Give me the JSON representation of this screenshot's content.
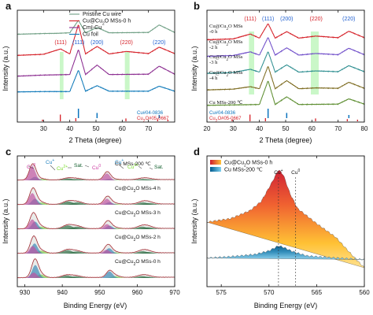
{
  "colors": {
    "pristine_cu_wire": "#6f9f84",
    "cu_cu2o_mss_0h": "#d51f27",
    "cmi_cu": "#8a2a8f",
    "cu_foil": "#0f79b9",
    "highlight_band": "#9ef09b",
    "cu_pdf": "#0b73bd",
    "cu2o_pdf": "#d51f27",
    "peak_cu": "#1f5fd0",
    "peak_cu2o": "#d51f27",
    "xps_envelope": "#e95a63",
    "xps_fill": "#9da29d",
    "xps_cu_plus": "#1b7fbe",
    "xps_cu0": "#cc39a1",
    "xps_cu2_plus": "#7bdc2e",
    "xps_sat": "#0d5c29",
    "panel_d_hot": "#ce1a2d",
    "panel_d_cool": "#77c9ea"
  },
  "chart_data": [
    {
      "panel": "a",
      "type": "line",
      "xlabel": "2 Theta (degree)",
      "ylabel": "Intensity (a.u.)",
      "xlim": [
        20,
        80
      ],
      "xticks": [
        30,
        40,
        50,
        60,
        70
      ],
      "legend_position": "top",
      "highlight_ranges": [
        [
          36.2,
          37.6
        ],
        [
          61.0,
          62.8
        ]
      ],
      "peak_labels": [
        {
          "text": "(111)",
          "x": 36.5,
          "phase": "Cu2O"
        },
        {
          "text": "(111)",
          "x": 43.3,
          "phase": "Cu"
        },
        {
          "text": "(200)",
          "x": 50.4,
          "phase": "Cu"
        },
        {
          "text": "(220)",
          "x": 61.6,
          "phase": "Cu2O"
        },
        {
          "text": "(220)",
          "x": 74.1,
          "phase": "Cu"
        }
      ],
      "series": [
        {
          "name": "Pristine Cu wire",
          "points": [
            [
              20,
              4.2
            ],
            [
              30,
              4.24
            ],
            [
              35,
              4.25
            ],
            [
              40,
              4.28
            ],
            [
              43.3,
              4.98
            ],
            [
              46,
              4.28
            ],
            [
              50.4,
              4.58
            ],
            [
              55,
              4.28
            ],
            [
              70,
              4.3
            ],
            [
              74.1,
              4.72
            ],
            [
              80,
              4.3
            ]
          ]
        },
        {
          "name": "Cu@Cu2O MSs-0 h",
          "points": [
            [
              20,
              3.02
            ],
            [
              30,
              3.08
            ],
            [
              36.5,
              3.38
            ],
            [
              40,
              3.1
            ],
            [
              43.3,
              4.75
            ],
            [
              46,
              3.1
            ],
            [
              50.4,
              3.52
            ],
            [
              55,
              3.1
            ],
            [
              61.6,
              3.24
            ],
            [
              70,
              3.12
            ],
            [
              74.1,
              3.48
            ],
            [
              80,
              3.12
            ]
          ]
        },
        {
          "name": "CmI-Cu",
          "points": [
            [
              20,
              1.86
            ],
            [
              30,
              1.92
            ],
            [
              40,
              1.95
            ],
            [
              43.3,
              3.35
            ],
            [
              46,
              1.95
            ],
            [
              50.4,
              2.48
            ],
            [
              55,
              1.95
            ],
            [
              70,
              1.97
            ],
            [
              74.1,
              2.42
            ],
            [
              80,
              1.97
            ]
          ]
        },
        {
          "name": "Cu foil",
          "points": [
            [
              20,
              0.98
            ],
            [
              30,
              1.0
            ],
            [
              40,
              1.0
            ],
            [
              43.3,
              2.2
            ],
            [
              46,
              1.02
            ],
            [
              50.4,
              1.33
            ],
            [
              55,
              1.02
            ],
            [
              70,
              1.02
            ],
            [
              74.1,
              1.3
            ],
            [
              80,
              1.02
            ]
          ]
        }
      ],
      "reference_patterns": [
        {
          "label": "Cu#04-0836",
          "peaks": [
            [
              43.3,
              1.0
            ],
            [
              50.4,
              0.46
            ],
            [
              74.1,
              0.2
            ]
          ]
        },
        {
          "label": "Cu2O#05-0667",
          "peaks": [
            [
              29.6,
              0.08
            ],
            [
              36.4,
              1.0
            ],
            [
              42.3,
              0.36
            ],
            [
              61.4,
              0.3
            ],
            [
              73.5,
              0.18
            ],
            [
              77.4,
              0.08
            ]
          ]
        }
      ]
    },
    {
      "panel": "b",
      "type": "line",
      "xlabel": "2 Theta (degree)",
      "ylabel": "Intensity (a.u.)",
      "xlim": [
        20,
        80
      ],
      "xticks": [
        20,
        30,
        40,
        50,
        60,
        70,
        80
      ],
      "highlight_ranges": [
        [
          36.0,
          38.0
        ],
        [
          59.6,
          62.6
        ]
      ],
      "peak_labels": [
        {
          "text": "(111)",
          "x": 36.5,
          "phase": "Cu2O"
        },
        {
          "text": "(111)",
          "x": 43.3,
          "phase": "Cu"
        },
        {
          "text": "(200)",
          "x": 50.4,
          "phase": "Cu"
        },
        {
          "text": "(220)",
          "x": 61.6,
          "phase": "Cu2O"
        },
        {
          "text": "(220)",
          "x": 74.1,
          "phase": "Cu"
        }
      ],
      "series": [
        {
          "name": "Cu@Cu2O MSs -0 h",
          "color": "#d51f27",
          "points": [
            [
              20,
              4.2
            ],
            [
              30,
              4.24
            ],
            [
              36.5,
              4.48
            ],
            [
              40,
              4.28
            ],
            [
              43.3,
              5.0
            ],
            [
              46,
              4.28
            ],
            [
              50.4,
              4.6
            ],
            [
              55,
              4.28
            ],
            [
              61.6,
              4.38
            ],
            [
              70,
              4.3
            ],
            [
              74.1,
              4.62
            ],
            [
              80,
              4.3
            ]
          ]
        },
        {
          "name": "Cu@Cu2O MSs -2 h",
          "color": "#6f4dc9",
          "points": [
            [
              20,
              3.38
            ],
            [
              30,
              3.42
            ],
            [
              36.5,
              3.6
            ],
            [
              40,
              3.44
            ],
            [
              43.3,
              4.32
            ],
            [
              46,
              3.44
            ],
            [
              50.4,
              3.8
            ],
            [
              55,
              3.44
            ],
            [
              61.6,
              3.52
            ],
            [
              70,
              3.46
            ],
            [
              74.1,
              3.78
            ],
            [
              80,
              3.46
            ]
          ]
        },
        {
          "name": "Cu@Cu2O MSs -3 h",
          "color": "#2f8f91",
          "points": [
            [
              20,
              2.54
            ],
            [
              30,
              2.58
            ],
            [
              36.5,
              2.74
            ],
            [
              40,
              2.6
            ],
            [
              43.3,
              3.62
            ],
            [
              46,
              2.6
            ],
            [
              50.4,
              2.96
            ],
            [
              55,
              2.6
            ],
            [
              61.6,
              2.66
            ],
            [
              70,
              2.62
            ],
            [
              74.1,
              2.92
            ],
            [
              80,
              2.62
            ]
          ]
        },
        {
          "name": "Cu@Cu2O MSs -4 h",
          "color": "#7d6b20",
          "points": [
            [
              20,
              1.72
            ],
            [
              30,
              1.76
            ],
            [
              36.5,
              1.88
            ],
            [
              40,
              1.78
            ],
            [
              43.3,
              2.9
            ],
            [
              46,
              1.78
            ],
            [
              50.4,
              2.18
            ],
            [
              55,
              1.78
            ],
            [
              61.6,
              1.82
            ],
            [
              70,
              1.8
            ],
            [
              74.1,
              2.1
            ],
            [
              80,
              1.8
            ]
          ]
        },
        {
          "name": "Cu MSs-200 ℃",
          "color": "#5c8d2f",
          "points": [
            [
              20,
              0.96
            ],
            [
              30,
              0.98
            ],
            [
              40,
              1.0
            ],
            [
              43.3,
              2.18
            ],
            [
              46,
              1.0
            ],
            [
              50.4,
              1.38
            ],
            [
              55,
              1.0
            ],
            [
              70,
              1.02
            ],
            [
              74.1,
              1.28
            ],
            [
              80,
              1.02
            ]
          ]
        }
      ],
      "reference_patterns": [
        {
          "label": "Cu#04-0836",
          "peaks": [
            [
              43.3,
              1.0
            ],
            [
              50.4,
              0.46
            ],
            [
              74.1,
              0.2
            ]
          ]
        },
        {
          "label": "Cu2O#05-0667",
          "peaks": [
            [
              29.6,
              0.08
            ],
            [
              36.4,
              1.0
            ],
            [
              42.3,
              0.36
            ],
            [
              61.4,
              0.3
            ],
            [
              73.5,
              0.18
            ],
            [
              77.4,
              0.08
            ]
          ]
        }
      ]
    },
    {
      "panel": "c",
      "type": "area",
      "xlabel": "Binding Energy (eV)",
      "ylabel": "Intensity (a.u.)",
      "xlim": [
        928,
        970
      ],
      "xticks": [
        930,
        940,
        950,
        960,
        970
      ],
      "annotations": [
        "Cu0",
        "Cu+",
        "Cu2+",
        "Sat.",
        "Cu0",
        "Cu+",
        "Cu2+",
        "Sat."
      ],
      "series": [
        {
          "name": "Cu@Cu2O MSs-0 h",
          "offset": 4.45,
          "components": {
            "cu0": [
              [
                932.4,
                0.34
              ]
            ],
            "cu_plus": [
              [
                932.8,
                0.82
              ],
              [
                952.6,
                0.42
              ]
            ],
            "cu2_plus": [
              [
                934.3,
                0.22
              ],
              [
                954.2,
                0.12
              ]
            ],
            "sat": [
              [
                941.2,
                0.16
              ],
              [
                943.7,
                0.11
              ],
              [
                961.2,
                0.12
              ],
              [
                962.8,
                0.08
              ]
            ]
          }
        },
        {
          "name": "Cu@Cu2O MSs-2 h",
          "offset": 3.2,
          "components": {
            "cu0": [
              [
                932.1,
                0.48
              ],
              [
                951.8,
                0.24
              ]
            ],
            "cu_plus": [
              [
                932.6,
                0.64
              ],
              [
                952.5,
                0.34
              ]
            ],
            "cu2_plus": [
              [
                934.4,
                0.18
              ],
              [
                954.0,
                0.08
              ]
            ],
            "sat": [
              [
                941.4,
                0.22
              ],
              [
                943.9,
                0.14
              ],
              [
                961.4,
                0.15
              ],
              [
                962.9,
                0.1
              ]
            ]
          }
        },
        {
          "name": "Cu@Cu2O MSs-3 h",
          "offset": 2.08,
          "components": {
            "cu0": [
              [
                932.0,
                0.62
              ],
              [
                951.9,
                0.32
              ]
            ],
            "cu_plus": [
              [
                932.7,
                0.48
              ],
              [
                952.6,
                0.22
              ]
            ],
            "cu2_plus": [
              [
                934.3,
                0.16
              ],
              [
                954.1,
                0.07
              ]
            ],
            "sat": [
              [
                941.5,
                0.24
              ],
              [
                944.0,
                0.16
              ],
              [
                961.3,
                0.16
              ],
              [
                963.0,
                0.12
              ]
            ]
          }
        },
        {
          "name": "Cu@Cu2O MSs-4 h",
          "offset": 1.02,
          "components": {
            "cu0": [
              [
                932.0,
                0.74
              ],
              [
                951.9,
                0.38
              ]
            ],
            "cu_plus": [
              [
                932.7,
                0.38
              ],
              [
                952.6,
                0.16
              ]
            ],
            "cu2_plus": [
              [
                934.4,
                0.14
              ],
              [
                954.1,
                0.06
              ]
            ],
            "sat": [
              [
                941.6,
                0.21
              ],
              [
                944.1,
                0.16
              ],
              [
                961.5,
                0.15
              ],
              [
                963.2,
                0.11
              ]
            ]
          }
        },
        {
          "name": "Cu MSs-200 ℃",
          "offset": 0.0,
          "components": {
            "cu0": [
              [
                932.0,
                0.86
              ],
              [
                951.9,
                0.44
              ]
            ],
            "cu_plus": [
              [
                932.7,
                0.22
              ],
              [
                952.5,
                0.09
              ]
            ],
            "cu2_plus": [
              [
                934.5,
                0.08
              ],
              [
                954.0,
                0.04
              ]
            ],
            "sat": [
              [
                941.6,
                0.12
              ],
              [
                944.0,
                0.08
              ],
              [
                961.4,
                0.08
              ],
              [
                963.0,
                0.06
              ]
            ]
          }
        }
      ]
    },
    {
      "panel": "d",
      "type": "area",
      "xlabel": "Binding Energy (eV)",
      "ylabel": "Intensity (a.u.)",
      "xlim": [
        576.5,
        560
      ],
      "xticks": [
        575,
        570,
        565,
        560
      ],
      "reference_lines": [
        {
          "label": "Cu+",
          "x": 569.0
        },
        {
          "label": "Cu0",
          "x": 567.2
        }
      ],
      "series": [
        {
          "name": "Cu@Cu2O MSs-0 h",
          "baseline": [
            [
              576.5,
              1.62
            ],
            [
              560,
              0.35
            ]
          ],
          "points": [
            [
              576.5,
              1.62
            ],
            [
              574.0,
              1.72
            ],
            [
              572.0,
              1.94
            ],
            [
              570.8,
              2.2
            ],
            [
              569.7,
              2.72
            ],
            [
              569.0,
              3.08
            ],
            [
              568.5,
              2.94
            ],
            [
              567.8,
              2.42
            ],
            [
              567.0,
              2.0
            ],
            [
              565.0,
              1.58
            ],
            [
              563.0,
              1.2
            ],
            [
              561.0,
              0.62
            ],
            [
              560.0,
              0.35
            ]
          ]
        },
        {
          "name": "Cu MSs-200 ℃",
          "baseline": [
            [
              576.5,
              0.62
            ],
            [
              560,
              0.58
            ]
          ],
          "points": [
            [
              576.5,
              0.62
            ],
            [
              574.0,
              0.66
            ],
            [
              571.5,
              0.72
            ],
            [
              570.0,
              0.82
            ],
            [
              569.0,
              0.96
            ],
            [
              568.5,
              0.92
            ],
            [
              567.5,
              0.8
            ],
            [
              566.0,
              0.68
            ],
            [
              563.5,
              0.63
            ],
            [
              560.0,
              0.58
            ]
          ]
        }
      ]
    }
  ]
}
